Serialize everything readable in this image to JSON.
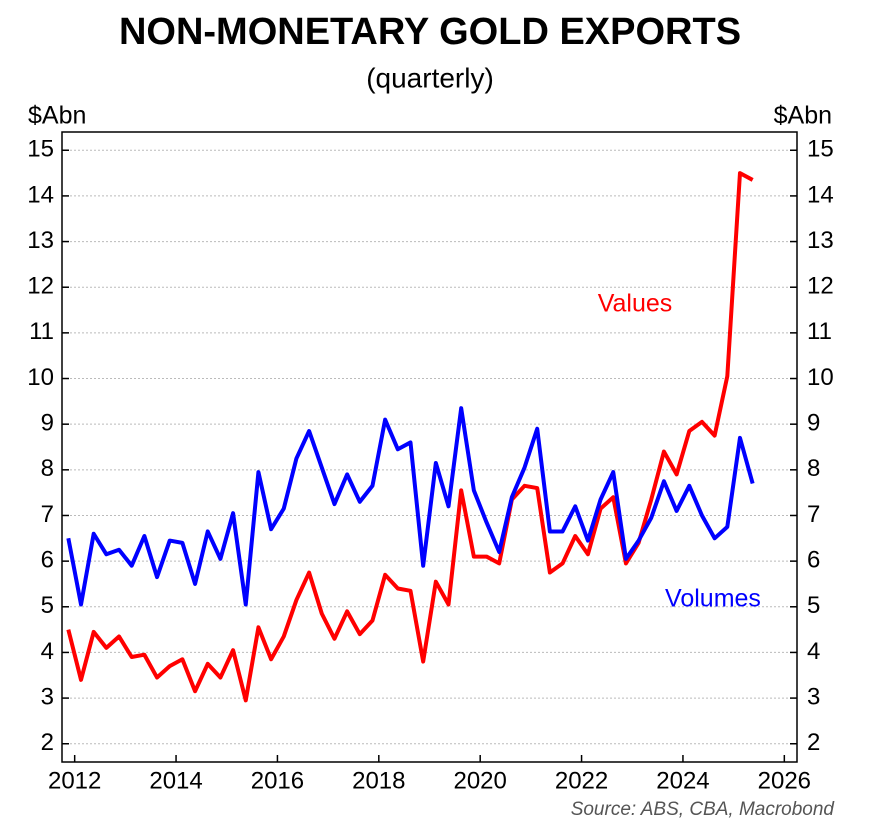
{
  "chart_data": {
    "type": "line",
    "title": "NON-MONETARY GOLD EXPORTS",
    "subtitle": "(quarterly)",
    "y_label": "$Abn",
    "y2_label": "$Abn",
    "source": "Source: ABS, CBA, Macrobond",
    "x": [
      2011.875,
      2012.125,
      2012.375,
      2012.625,
      2012.875,
      2013.125,
      2013.375,
      2013.625,
      2013.875,
      2014.125,
      2014.375,
      2014.625,
      2014.875,
      2015.125,
      2015.375,
      2015.625,
      2015.875,
      2016.125,
      2016.375,
      2016.625,
      2016.875,
      2017.125,
      2017.375,
      2017.625,
      2017.875,
      2018.125,
      2018.375,
      2018.625,
      2018.875,
      2019.125,
      2019.375,
      2019.625,
      2019.875,
      2020.125,
      2020.375,
      2020.625,
      2020.875,
      2021.125,
      2021.375,
      2021.625,
      2021.875,
      2022.125,
      2022.375,
      2022.625,
      2022.875,
      2023.125,
      2023.375,
      2023.625,
      2023.875,
      2024.125,
      2024.375,
      2024.625,
      2024.875,
      2025.125,
      2025.375
    ],
    "series": [
      {
        "name": "Values",
        "color": "#ff0000",
        "values": [
          4.5,
          3.4,
          4.45,
          4.1,
          4.35,
          3.9,
          3.95,
          3.45,
          3.7,
          3.85,
          3.15,
          3.75,
          3.45,
          4.05,
          2.95,
          4.55,
          3.85,
          4.35,
          5.15,
          5.75,
          4.85,
          4.3,
          4.9,
          4.4,
          4.7,
          5.7,
          5.4,
          5.35,
          3.8,
          5.55,
          5.05,
          7.55,
          6.1,
          6.1,
          5.95,
          7.35,
          7.65,
          7.6,
          5.75,
          5.95,
          6.55,
          6.15,
          7.15,
          7.4,
          5.95,
          6.4,
          7.35,
          8.4,
          7.9,
          8.85,
          9.05,
          8.75,
          10.05,
          14.5,
          14.35
        ]
      },
      {
        "name": "Volumes",
        "color": "#0000ff",
        "values": [
          6.5,
          5.05,
          6.6,
          6.15,
          6.25,
          5.9,
          6.55,
          5.65,
          6.45,
          6.4,
          5.5,
          6.65,
          6.05,
          7.05,
          5.05,
          7.95,
          6.7,
          7.15,
          8.25,
          8.85,
          8.05,
          7.25,
          7.9,
          7.3,
          7.65,
          9.1,
          8.45,
          8.6,
          5.9,
          8.15,
          7.2,
          9.35,
          7.55,
          6.85,
          6.2,
          7.4,
          8.05,
          8.9,
          6.65,
          6.65,
          7.2,
          6.45,
          7.35,
          7.95,
          6.05,
          6.45,
          6.95,
          7.75,
          7.1,
          7.65,
          7.0,
          6.5,
          6.75,
          8.7,
          7.7
        ]
      }
    ],
    "xlim": [
      2011.75,
      2026.25
    ],
    "xticks": [
      2012,
      2014,
      2016,
      2018,
      2020,
      2022,
      2024,
      2026
    ],
    "ylim": [
      1.6,
      15.4
    ],
    "yticks": [
      2,
      3,
      4,
      5,
      6,
      7,
      8,
      9,
      10,
      11,
      12,
      13,
      14,
      15
    ],
    "y2lim": [
      1.6,
      15.4
    ],
    "y2ticks": [
      2,
      3,
      4,
      5,
      6,
      7,
      8,
      9,
      10,
      11,
      12,
      13,
      14,
      15
    ],
    "grid": true
  }
}
